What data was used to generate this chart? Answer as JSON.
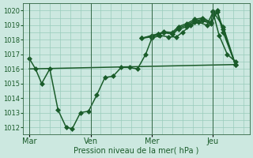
{
  "background_color": "#cce8e0",
  "grid_color": "#99ccbb",
  "line_color": "#1a5c2a",
  "xlabel": "Pression niveau de la mer( hPa )",
  "ylim": [
    1011.5,
    1020.5
  ],
  "yticks": [
    1012,
    1013,
    1014,
    1015,
    1016,
    1017,
    1018,
    1019,
    1020
  ],
  "day_labels": [
    "Mar",
    "Ven",
    "Mer",
    "Jeu"
  ],
  "day_positions": [
    0,
    3,
    6,
    9
  ],
  "xlim": [
    -0.3,
    10.8
  ],
  "series": [
    {
      "x": [
        0,
        0.3,
        0.6,
        1.0,
        1.4,
        1.8,
        2.1,
        2.5,
        2.9,
        3.3,
        3.7,
        4.1,
        4.5,
        4.9,
        5.3,
        5.7,
        6.0,
        6.4,
        6.8,
        7.2,
        7.5,
        7.9,
        8.3,
        8.7,
        9.0,
        9.3,
        9.7,
        10.1
      ],
      "y": [
        1016.7,
        1016.0,
        1015.0,
        1016.0,
        1013.2,
        1012.0,
        1011.9,
        1013.0,
        1013.1,
        1014.2,
        1015.4,
        1015.5,
        1016.1,
        1016.1,
        1016.0,
        1017.0,
        1018.1,
        1018.3,
        1018.2,
        1018.2,
        1018.5,
        1019.0,
        1019.2,
        1019.0,
        1019.9,
        1018.3,
        1017.0,
        1016.5
      ],
      "marker": "D",
      "markersize": 3.0,
      "linewidth": 1.1
    },
    {
      "x": [
        0,
        10.1
      ],
      "y": [
        1016.0,
        1016.3
      ],
      "marker": "D",
      "markersize": 0,
      "linewidth": 1.1
    },
    {
      "x": [
        5.5,
        6.0,
        6.3,
        6.6,
        7.0,
        7.3,
        7.7,
        8.1,
        8.5,
        8.9,
        9.2,
        9.5,
        10.1
      ],
      "y": [
        1018.1,
        1018.3,
        1018.4,
        1018.5,
        1018.4,
        1018.7,
        1018.9,
        1019.2,
        1019.3,
        1019.1,
        1019.9,
        1018.5,
        1016.3
      ],
      "marker": "D",
      "markersize": 3.0,
      "linewidth": 1.1
    },
    {
      "x": [
        5.5,
        6.0,
        6.3,
        6.6,
        7.0,
        7.3,
        7.7,
        8.1,
        8.5,
        8.9,
        9.2,
        9.5,
        10.1
      ],
      "y": [
        1018.1,
        1018.2,
        1018.35,
        1018.5,
        1018.4,
        1018.8,
        1019.0,
        1019.3,
        1019.4,
        1019.15,
        1020.0,
        1018.7,
        1016.3
      ],
      "marker": "D",
      "markersize": 3.0,
      "linewidth": 1.1
    },
    {
      "x": [
        5.5,
        6.0,
        6.3,
        6.6,
        7.0,
        7.3,
        7.7,
        8.1,
        8.5,
        8.9,
        9.0,
        9.5,
        10.1
      ],
      "y": [
        1018.1,
        1018.25,
        1018.4,
        1018.55,
        1018.5,
        1018.9,
        1019.1,
        1019.4,
        1019.5,
        1019.2,
        1019.95,
        1018.9,
        1016.3
      ],
      "marker": "D",
      "markersize": 3.0,
      "linewidth": 1.1
    }
  ],
  "vline_positions": [
    0,
    3,
    6,
    9
  ],
  "vline_color": "#336644"
}
